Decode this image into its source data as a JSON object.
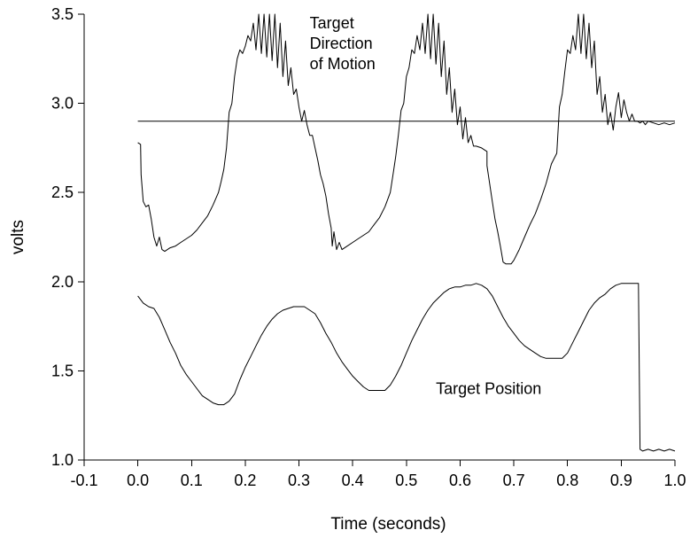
{
  "chart_data": {
    "type": "line",
    "title": "",
    "xlabel": "Time (seconds)",
    "ylabel": "volts",
    "xlim": [
      -0.1,
      1.0
    ],
    "ylim": [
      1.0,
      3.5
    ],
    "x_ticks": [
      -0.1,
      0.0,
      0.1,
      0.2,
      0.3,
      0.4,
      0.5,
      0.6,
      0.7,
      0.8,
      0.9,
      1.0
    ],
    "x_tick_labels": [
      "-0.1",
      "0.0",
      "0.1",
      "0.2",
      "0.3",
      "0.4",
      "0.5",
      "0.6",
      "0.7",
      "0.8",
      "0.9",
      "1.0"
    ],
    "y_ticks": [
      1.0,
      1.5,
      2.0,
      2.5,
      3.0,
      3.5
    ],
    "y_tick_labels": [
      "1.0",
      "1.5",
      "2.0",
      "2.5",
      "3.0",
      "3.5"
    ],
    "grid": false,
    "legend": "none",
    "line_color": "#000000",
    "annotations": [
      {
        "text_lines": [
          "Target",
          "Direction",
          "of Motion"
        ],
        "anchor_x": 0.32,
        "anchor_y": 3.42
      },
      {
        "text_lines": [
          "Target Position"
        ],
        "anchor_x": 0.555,
        "anchor_y": 1.37
      }
    ],
    "series": [
      {
        "points": [
          [
            0.0,
            2.78
          ],
          [
            0.005,
            2.77
          ],
          [
            0.006,
            2.6
          ],
          [
            0.01,
            2.45
          ],
          [
            0.015,
            2.42
          ],
          [
            0.02,
            2.43
          ],
          [
            0.025,
            2.35
          ],
          [
            0.03,
            2.25
          ],
          [
            0.035,
            2.2
          ],
          [
            0.04,
            2.25
          ],
          [
            0.045,
            2.18
          ],
          [
            0.05,
            2.17
          ],
          [
            0.06,
            2.19
          ],
          [
            0.07,
            2.2
          ],
          [
            0.08,
            2.22
          ],
          [
            0.09,
            2.24
          ],
          [
            0.1,
            2.26
          ],
          [
            0.11,
            2.29
          ],
          [
            0.12,
            2.33
          ],
          [
            0.13,
            2.37
          ],
          [
            0.14,
            2.43
          ],
          [
            0.15,
            2.5
          ],
          [
            0.155,
            2.56
          ],
          [
            0.16,
            2.63
          ],
          [
            0.165,
            2.75
          ],
          [
            0.17,
            2.95
          ],
          [
            0.175,
            3.0
          ],
          [
            0.18,
            3.15
          ],
          [
            0.185,
            3.25
          ],
          [
            0.19,
            3.3
          ],
          [
            0.195,
            3.28
          ],
          [
            0.2,
            3.32
          ],
          [
            0.205,
            3.38
          ],
          [
            0.21,
            3.35
          ],
          [
            0.215,
            3.45
          ],
          [
            0.22,
            3.3
          ],
          [
            0.225,
            3.5
          ],
          [
            0.23,
            3.28
          ],
          [
            0.235,
            3.5
          ],
          [
            0.24,
            3.26
          ],
          [
            0.245,
            3.5
          ],
          [
            0.25,
            3.24
          ],
          [
            0.255,
            3.5
          ],
          [
            0.26,
            3.2
          ],
          [
            0.265,
            3.45
          ],
          [
            0.27,
            3.15
          ],
          [
            0.275,
            3.35
          ],
          [
            0.28,
            3.1
          ],
          [
            0.285,
            3.2
          ],
          [
            0.29,
            3.05
          ],
          [
            0.295,
            3.08
          ],
          [
            0.3,
            2.98
          ],
          [
            0.305,
            2.9
          ],
          [
            0.31,
            2.96
          ],
          [
            0.315,
            2.88
          ],
          [
            0.32,
            2.82
          ],
          [
            0.325,
            2.82
          ],
          [
            0.33,
            2.75
          ],
          [
            0.335,
            2.68
          ],
          [
            0.34,
            2.6
          ],
          [
            0.345,
            2.55
          ],
          [
            0.35,
            2.48
          ],
          [
            0.355,
            2.38
          ],
          [
            0.36,
            2.3
          ],
          [
            0.362,
            2.2
          ],
          [
            0.365,
            2.28
          ],
          [
            0.37,
            2.18
          ],
          [
            0.375,
            2.22
          ],
          [
            0.38,
            2.18
          ],
          [
            0.39,
            2.2
          ],
          [
            0.4,
            2.22
          ],
          [
            0.41,
            2.24
          ],
          [
            0.42,
            2.26
          ],
          [
            0.43,
            2.28
          ],
          [
            0.44,
            2.32
          ],
          [
            0.45,
            2.36
          ],
          [
            0.46,
            2.42
          ],
          [
            0.47,
            2.5
          ],
          [
            0.475,
            2.6
          ],
          [
            0.48,
            2.7
          ],
          [
            0.485,
            2.82
          ],
          [
            0.49,
            2.96
          ],
          [
            0.495,
            3.0
          ],
          [
            0.5,
            3.15
          ],
          [
            0.505,
            3.2
          ],
          [
            0.51,
            3.3
          ],
          [
            0.515,
            3.28
          ],
          [
            0.52,
            3.38
          ],
          [
            0.525,
            3.3
          ],
          [
            0.53,
            3.45
          ],
          [
            0.535,
            3.28
          ],
          [
            0.54,
            3.5
          ],
          [
            0.545,
            3.25
          ],
          [
            0.55,
            3.5
          ],
          [
            0.555,
            3.22
          ],
          [
            0.56,
            3.45
          ],
          [
            0.565,
            3.15
          ],
          [
            0.57,
            3.35
          ],
          [
            0.575,
            3.05
          ],
          [
            0.58,
            3.2
          ],
          [
            0.585,
            2.95
          ],
          [
            0.59,
            3.08
          ],
          [
            0.595,
            2.88
          ],
          [
            0.6,
            2.98
          ],
          [
            0.605,
            2.8
          ],
          [
            0.61,
            2.92
          ],
          [
            0.615,
            2.78
          ],
          [
            0.62,
            2.82
          ],
          [
            0.625,
            2.76
          ],
          [
            0.63,
            2.76
          ],
          [
            0.64,
            2.75
          ],
          [
            0.645,
            2.74
          ],
          [
            0.65,
            2.73
          ],
          [
            0.65,
            2.65
          ],
          [
            0.655,
            2.55
          ],
          [
            0.66,
            2.45
          ],
          [
            0.665,
            2.35
          ],
          [
            0.67,
            2.28
          ],
          [
            0.675,
            2.2
          ],
          [
            0.68,
            2.11
          ],
          [
            0.685,
            2.1
          ],
          [
            0.695,
            2.1
          ],
          [
            0.7,
            2.12
          ],
          [
            0.71,
            2.18
          ],
          [
            0.72,
            2.25
          ],
          [
            0.73,
            2.32
          ],
          [
            0.74,
            2.38
          ],
          [
            0.75,
            2.46
          ],
          [
            0.76,
            2.55
          ],
          [
            0.77,
            2.66
          ],
          [
            0.78,
            2.72
          ],
          [
            0.785,
            2.98
          ],
          [
            0.79,
            3.05
          ],
          [
            0.795,
            3.18
          ],
          [
            0.8,
            3.3
          ],
          [
            0.805,
            3.28
          ],
          [
            0.81,
            3.38
          ],
          [
            0.815,
            3.3
          ],
          [
            0.82,
            3.5
          ],
          [
            0.825,
            3.28
          ],
          [
            0.83,
            3.5
          ],
          [
            0.835,
            3.25
          ],
          [
            0.84,
            3.45
          ],
          [
            0.845,
            3.2
          ],
          [
            0.85,
            3.35
          ],
          [
            0.855,
            3.05
          ],
          [
            0.86,
            3.15
          ],
          [
            0.865,
            2.95
          ],
          [
            0.87,
            3.05
          ],
          [
            0.875,
            2.88
          ],
          [
            0.88,
            2.95
          ],
          [
            0.885,
            2.85
          ],
          [
            0.89,
            2.98
          ],
          [
            0.895,
            3.06
          ],
          [
            0.9,
            2.92
          ],
          [
            0.905,
            3.02
          ],
          [
            0.91,
            2.95
          ],
          [
            0.915,
            2.9
          ],
          [
            0.92,
            2.94
          ],
          [
            0.925,
            2.9
          ],
          [
            0.93,
            2.9
          ],
          [
            0.935,
            2.89
          ],
          [
            0.94,
            2.9
          ],
          [
            0.945,
            2.88
          ],
          [
            0.95,
            2.9
          ],
          [
            0.96,
            2.89
          ],
          [
            0.97,
            2.88
          ],
          [
            0.98,
            2.89
          ],
          [
            0.99,
            2.88
          ],
          [
            1.0,
            2.89
          ]
        ]
      },
      {
        "points": [
          [
            0.0,
            2.9
          ],
          [
            1.0,
            2.9
          ]
        ]
      },
      {
        "points": [
          [
            0.0,
            1.92
          ],
          [
            0.01,
            1.88
          ],
          [
            0.02,
            1.86
          ],
          [
            0.03,
            1.85
          ],
          [
            0.04,
            1.8
          ],
          [
            0.05,
            1.73
          ],
          [
            0.06,
            1.66
          ],
          [
            0.07,
            1.6
          ],
          [
            0.08,
            1.53
          ],
          [
            0.09,
            1.48
          ],
          [
            0.1,
            1.44
          ],
          [
            0.11,
            1.4
          ],
          [
            0.12,
            1.36
          ],
          [
            0.13,
            1.34
          ],
          [
            0.14,
            1.32
          ],
          [
            0.15,
            1.31
          ],
          [
            0.16,
            1.31
          ],
          [
            0.17,
            1.33
          ],
          [
            0.18,
            1.37
          ],
          [
            0.19,
            1.45
          ],
          [
            0.2,
            1.52
          ],
          [
            0.21,
            1.58
          ],
          [
            0.22,
            1.64
          ],
          [
            0.23,
            1.7
          ],
          [
            0.24,
            1.75
          ],
          [
            0.25,
            1.79
          ],
          [
            0.26,
            1.82
          ],
          [
            0.27,
            1.84
          ],
          [
            0.28,
            1.85
          ],
          [
            0.29,
            1.86
          ],
          [
            0.3,
            1.86
          ],
          [
            0.31,
            1.86
          ],
          [
            0.32,
            1.84
          ],
          [
            0.33,
            1.82
          ],
          [
            0.34,
            1.77
          ],
          [
            0.35,
            1.71
          ],
          [
            0.36,
            1.66
          ],
          [
            0.37,
            1.6
          ],
          [
            0.38,
            1.55
          ],
          [
            0.39,
            1.51
          ],
          [
            0.4,
            1.47
          ],
          [
            0.41,
            1.44
          ],
          [
            0.42,
            1.41
          ],
          [
            0.43,
            1.39
          ],
          [
            0.44,
            1.39
          ],
          [
            0.45,
            1.39
          ],
          [
            0.46,
            1.39
          ],
          [
            0.47,
            1.42
          ],
          [
            0.48,
            1.47
          ],
          [
            0.49,
            1.53
          ],
          [
            0.5,
            1.6
          ],
          [
            0.51,
            1.67
          ],
          [
            0.52,
            1.73
          ],
          [
            0.53,
            1.79
          ],
          [
            0.54,
            1.84
          ],
          [
            0.55,
            1.88
          ],
          [
            0.56,
            1.91
          ],
          [
            0.57,
            1.94
          ],
          [
            0.58,
            1.96
          ],
          [
            0.59,
            1.97
          ],
          [
            0.6,
            1.97
          ],
          [
            0.61,
            1.98
          ],
          [
            0.62,
            1.98
          ],
          [
            0.63,
            1.99
          ],
          [
            0.64,
            1.98
          ],
          [
            0.65,
            1.96
          ],
          [
            0.66,
            1.92
          ],
          [
            0.67,
            1.86
          ],
          [
            0.68,
            1.8
          ],
          [
            0.69,
            1.75
          ],
          [
            0.7,
            1.71
          ],
          [
            0.71,
            1.67
          ],
          [
            0.72,
            1.64
          ],
          [
            0.73,
            1.62
          ],
          [
            0.74,
            1.6
          ],
          [
            0.75,
            1.58
          ],
          [
            0.76,
            1.57
          ],
          [
            0.77,
            1.57
          ],
          [
            0.78,
            1.57
          ],
          [
            0.79,
            1.57
          ],
          [
            0.8,
            1.6
          ],
          [
            0.81,
            1.66
          ],
          [
            0.82,
            1.72
          ],
          [
            0.83,
            1.78
          ],
          [
            0.84,
            1.84
          ],
          [
            0.85,
            1.88
          ],
          [
            0.86,
            1.91
          ],
          [
            0.87,
            1.93
          ],
          [
            0.88,
            1.96
          ],
          [
            0.89,
            1.98
          ],
          [
            0.9,
            1.99
          ],
          [
            0.91,
            1.99
          ],
          [
            0.92,
            1.99
          ],
          [
            0.93,
            1.99
          ],
          [
            0.932,
            1.99
          ],
          [
            0.935,
            1.06
          ],
          [
            0.94,
            1.05
          ],
          [
            0.95,
            1.06
          ],
          [
            0.96,
            1.05
          ],
          [
            0.97,
            1.06
          ],
          [
            0.98,
            1.05
          ],
          [
            0.99,
            1.06
          ],
          [
            1.0,
            1.05
          ]
        ]
      }
    ]
  }
}
